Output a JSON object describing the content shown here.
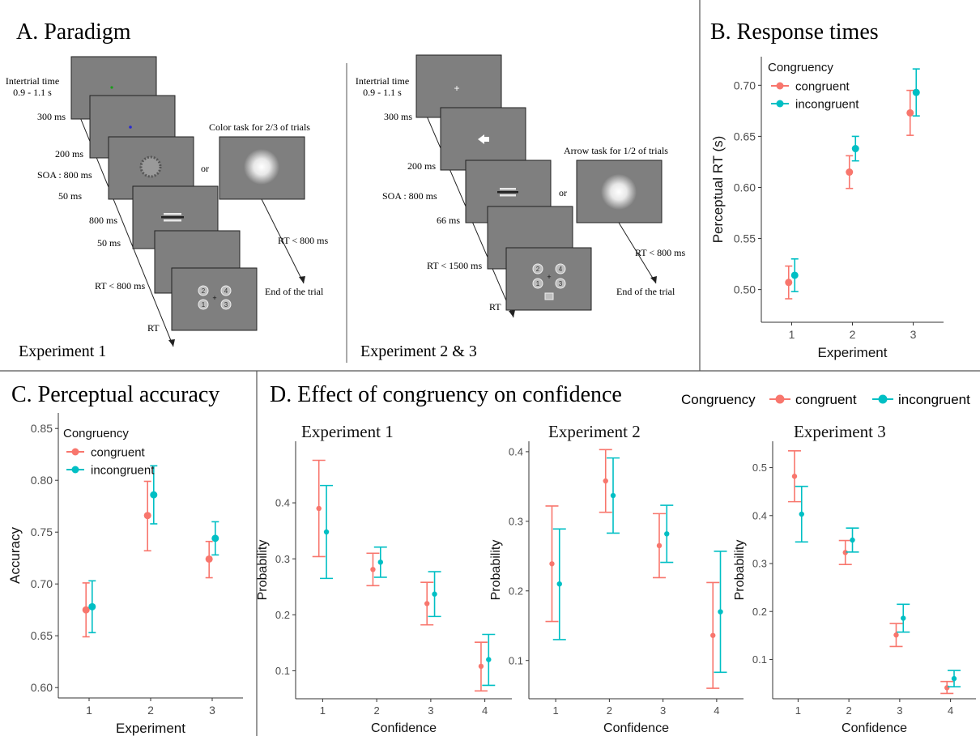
{
  "colors": {
    "congruent": "#F8766D",
    "incongruent": "#00BFC4",
    "screen": "#7f7f7f",
    "screen_border": "#222222",
    "divider": "#555555"
  },
  "panels": {
    "A": {
      "title": "A. Paradigm",
      "exp1": {
        "caption": "Experiment 1",
        "intertrial_line1": "Intertrial time",
        "intertrial_line2": "0.9 - 1.1 s",
        "timings": [
          "300 ms",
          "200 ms",
          "SOA : 800 ms",
          "50 ms",
          "800 ms",
          "50 ms",
          "RT < 800 ms",
          "RT"
        ],
        "side_title": "Color task for 2/3 of trials",
        "or_label": "or",
        "side_rt": "RT < 800 ms",
        "end": "End of the trial",
        "response_numbers": [
          "2",
          "4",
          "1",
          "3"
        ]
      },
      "exp23": {
        "caption": "Experiment 2 & 3",
        "intertrial_line1": "Intertrial time",
        "intertrial_line2": "0.9 - 1.1 s",
        "timings": [
          "300 ms",
          "200 ms",
          "SOA : 800 ms",
          "66 ms",
          "RT < 1500 ms",
          "RT"
        ],
        "side_title": "Arrow task for 1/2 of trials",
        "or_label": "or",
        "side_rt": "RT < 800 ms",
        "end": "End of the trial",
        "response_numbers": [
          "2",
          "4",
          "1",
          "3"
        ]
      }
    },
    "B": {
      "title": "B. Response times"
    },
    "C": {
      "title": "C. Perceptual accuracy"
    },
    "D": {
      "title": "D. Effect of congruency on confidence",
      "legend_title": "Congruency",
      "legend_items": [
        "congruent",
        "incongruent"
      ]
    }
  },
  "chart_data": [
    {
      "id": "B",
      "type": "scatter",
      "errorbars": true,
      "xlabel": "Experiment",
      "ylabel": "Perceptual RT (s)",
      "xlim": [
        0.5,
        3.5
      ],
      "ylim": [
        0.468,
        0.728
      ],
      "x_ticks": [
        1,
        2,
        3
      ],
      "y_ticks": [
        0.5,
        0.55,
        0.6,
        0.65,
        0.7
      ],
      "y_tick_labels": [
        "0.50",
        "0.55",
        "0.60",
        "0.65",
        "0.70"
      ],
      "legend": {
        "title": "Congruency",
        "placement": "top-left"
      },
      "series": [
        {
          "name": "congruent",
          "x": [
            1,
            2,
            3
          ],
          "y": [
            0.507,
            0.615,
            0.673
          ],
          "lo": [
            0.491,
            0.599,
            0.651
          ],
          "hi": [
            0.523,
            0.631,
            0.695
          ]
        },
        {
          "name": "incongruent",
          "x": [
            1,
            2,
            3
          ],
          "y": [
            0.514,
            0.638,
            0.693
          ],
          "lo": [
            0.498,
            0.626,
            0.67
          ],
          "hi": [
            0.53,
            0.65,
            0.716
          ]
        }
      ]
    },
    {
      "id": "C",
      "type": "scatter",
      "errorbars": true,
      "xlabel": "Experiment",
      "ylabel": "Accuracy",
      "xlim": [
        0.5,
        3.5
      ],
      "ylim": [
        0.59,
        0.865
      ],
      "x_ticks": [
        1,
        2,
        3
      ],
      "y_ticks": [
        0.6,
        0.65,
        0.7,
        0.75,
        0.8,
        0.85
      ],
      "y_tick_labels": [
        "0.60",
        "0.65",
        "0.70",
        "0.75",
        "0.80",
        "0.85"
      ],
      "legend": {
        "title": "Congruency",
        "placement": "top-left"
      },
      "series": [
        {
          "name": "congruent",
          "x": [
            1,
            2,
            3
          ],
          "y": [
            0.675,
            0.766,
            0.724
          ],
          "lo": [
            0.649,
            0.732,
            0.706
          ],
          "hi": [
            0.701,
            0.799,
            0.741
          ]
        },
        {
          "name": "incongruent",
          "x": [
            1,
            2,
            3
          ],
          "y": [
            0.678,
            0.786,
            0.744
          ],
          "lo": [
            0.653,
            0.758,
            0.728
          ],
          "hi": [
            0.703,
            0.814,
            0.76
          ]
        }
      ]
    },
    {
      "id": "D1",
      "type": "scatter",
      "errorbars": true,
      "title": "Experiment 1",
      "xlabel": "Confidence",
      "ylabel": "Probability",
      "xlim": [
        0.5,
        4.5
      ],
      "ylim": [
        0.05,
        0.51
      ],
      "x_ticks": [
        1,
        2,
        3,
        4
      ],
      "y_ticks": [
        0.1,
        0.2,
        0.3,
        0.4
      ],
      "y_tick_labels": [
        "0.1",
        "0.2",
        "0.3",
        "0.4"
      ],
      "series": [
        {
          "name": "congruent",
          "x": [
            1,
            2,
            3,
            4
          ],
          "y": [
            0.39,
            0.281,
            0.22,
            0.108
          ],
          "lo": [
            0.304,
            0.252,
            0.182,
            0.064
          ],
          "hi": [
            0.476,
            0.31,
            0.258,
            0.151
          ]
        },
        {
          "name": "incongruent",
          "x": [
            1,
            2,
            3,
            4
          ],
          "y": [
            0.348,
            0.294,
            0.237,
            0.12
          ],
          "lo": [
            0.265,
            0.267,
            0.197,
            0.074
          ],
          "hi": [
            0.431,
            0.321,
            0.277,
            0.165
          ]
        }
      ]
    },
    {
      "id": "D2",
      "type": "scatter",
      "errorbars": true,
      "title": "Experiment 2",
      "xlabel": "Confidence",
      "ylabel": "Probability",
      "xlim": [
        0.5,
        4.5
      ],
      "ylim": [
        0.045,
        0.415
      ],
      "x_ticks": [
        1,
        2,
        3,
        4
      ],
      "y_ticks": [
        0.1,
        0.2,
        0.3,
        0.4
      ],
      "y_tick_labels": [
        "0.1",
        "0.2",
        "0.3",
        "0.4"
      ],
      "series": [
        {
          "name": "congruent",
          "x": [
            1,
            2,
            3,
            4
          ],
          "y": [
            0.239,
            0.358,
            0.265,
            0.136
          ],
          "lo": [
            0.156,
            0.313,
            0.219,
            0.06
          ],
          "hi": [
            0.322,
            0.403,
            0.311,
            0.212
          ]
        },
        {
          "name": "incongruent",
          "x": [
            1,
            2,
            3,
            4
          ],
          "y": [
            0.21,
            0.337,
            0.282,
            0.17
          ],
          "lo": [
            0.13,
            0.283,
            0.241,
            0.083
          ],
          "hi": [
            0.289,
            0.391,
            0.323,
            0.257
          ]
        }
      ]
    },
    {
      "id": "D3",
      "type": "scatter",
      "errorbars": true,
      "title": "Experiment 3",
      "xlabel": "Confidence",
      "ylabel": "Probability",
      "xlim": [
        0.5,
        4.5
      ],
      "ylim": [
        0.018,
        0.555
      ],
      "x_ticks": [
        1,
        2,
        3,
        4
      ],
      "y_ticks": [
        0.1,
        0.2,
        0.3,
        0.4,
        0.5
      ],
      "y_tick_labels": [
        "0.1",
        "0.2",
        "0.3",
        "0.4",
        "0.5"
      ],
      "series": [
        {
          "name": "congruent",
          "x": [
            1,
            2,
            3,
            4
          ],
          "y": [
            0.482,
            0.323,
            0.151,
            0.041
          ],
          "lo": [
            0.429,
            0.298,
            0.127,
            0.029
          ],
          "hi": [
            0.535,
            0.348,
            0.175,
            0.054
          ]
        },
        {
          "name": "incongruent",
          "x": [
            1,
            2,
            3,
            4
          ],
          "y": [
            0.403,
            0.349,
            0.186,
            0.06
          ],
          "lo": [
            0.345,
            0.324,
            0.157,
            0.043
          ],
          "hi": [
            0.461,
            0.374,
            0.215,
            0.077
          ]
        }
      ]
    }
  ]
}
